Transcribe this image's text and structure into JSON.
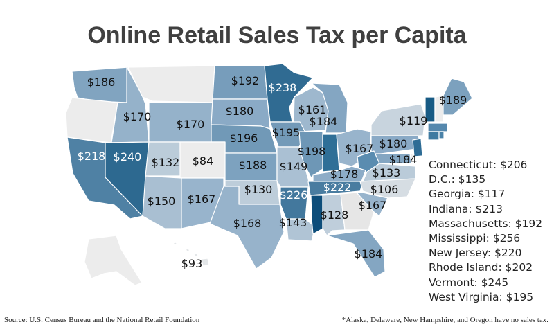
{
  "title": "Online Retail Sales Tax per Capita",
  "colors": {
    "low": "#f2f2f2",
    "mid": "#86a9c4",
    "high": "#185f88",
    "border": "#ffffff"
  },
  "chart_data": {
    "type": "choropleth",
    "regions": [
      {
        "state": "Washington",
        "label": "$186",
        "value": 186
      },
      {
        "state": "Montana",
        "label": "",
        "value": null
      },
      {
        "state": "North Dakota",
        "label": "$192",
        "value": 192
      },
      {
        "state": "Minnesota",
        "label": "$238",
        "value": 238
      },
      {
        "state": "Idaho",
        "label": "$170",
        "value": 170
      },
      {
        "state": "Wyoming",
        "label": "$170",
        "value": 170
      },
      {
        "state": "South Dakota",
        "label": "$180",
        "value": 180
      },
      {
        "state": "Wisconsin",
        "label": "$161",
        "value": 161
      },
      {
        "state": "Michigan",
        "label": "$184",
        "value": 184
      },
      {
        "state": "Maine",
        "label": "$189",
        "value": 189
      },
      {
        "state": "New York",
        "label": "$119",
        "value": 119
      },
      {
        "state": "Vermont",
        "label": "",
        "value": 245
      },
      {
        "state": "Nebraska",
        "label": "$196",
        "value": 196
      },
      {
        "state": "Iowa",
        "label": "$195",
        "value": 195
      },
      {
        "state": "Illinois",
        "label": "$198",
        "value": 198
      },
      {
        "state": "Ohio",
        "label": "$167",
        "value": 167
      },
      {
        "state": "Pennsylvania",
        "label": "$180",
        "value": 180
      },
      {
        "state": "California",
        "label": "$218",
        "value": 218
      },
      {
        "state": "Nevada",
        "label": "$240",
        "value": 240
      },
      {
        "state": "Utah",
        "label": "$132",
        "value": 132
      },
      {
        "state": "Colorado",
        "label": "$84",
        "value": 84
      },
      {
        "state": "Kansas",
        "label": "$188",
        "value": 188
      },
      {
        "state": "Missouri",
        "label": "$149",
        "value": 149
      },
      {
        "state": "Kentucky",
        "label": "$178",
        "value": 178
      },
      {
        "state": "Virginia",
        "label": "$133",
        "value": 133
      },
      {
        "state": "Maryland",
        "label": "$184",
        "value": 184
      },
      {
        "state": "Arizona",
        "label": "$150",
        "value": 150
      },
      {
        "state": "New Mexico",
        "label": "$167",
        "value": 167
      },
      {
        "state": "Oklahoma",
        "label": "$130",
        "value": 130
      },
      {
        "state": "Arkansas",
        "label": "$226",
        "value": 226
      },
      {
        "state": "Tennessee",
        "label": "$222",
        "value": 222
      },
      {
        "state": "North Carolina",
        "label": "$106",
        "value": 106
      },
      {
        "state": "South Carolina",
        "label": "$167",
        "value": 167
      },
      {
        "state": "Texas",
        "label": "$168",
        "value": 168
      },
      {
        "state": "Louisiana",
        "label": "$143",
        "value": 143
      },
      {
        "state": "Alabama",
        "label": "$128",
        "value": 128
      },
      {
        "state": "Florida",
        "label": "$184",
        "value": 184
      },
      {
        "state": "Hawaii",
        "label": "$93",
        "value": 93
      }
    ]
  },
  "legend_lines": [
    "Connecticut: $206",
    "D.C.: $135",
    "Georgia: $117",
    "Indiana: $213",
    "Massachusetts: $192",
    "Mississippi: $256",
    "New Jersey: $220",
    "Rhode Island: $202",
    "Vermont: $245",
    "West Virginia: $195"
  ],
  "source": "Source: U.S. Census Bureau and the National Retail Foundation",
  "footnote": "*Alaska, Delaware, New Hampshire, and Oregon have no sales tax."
}
